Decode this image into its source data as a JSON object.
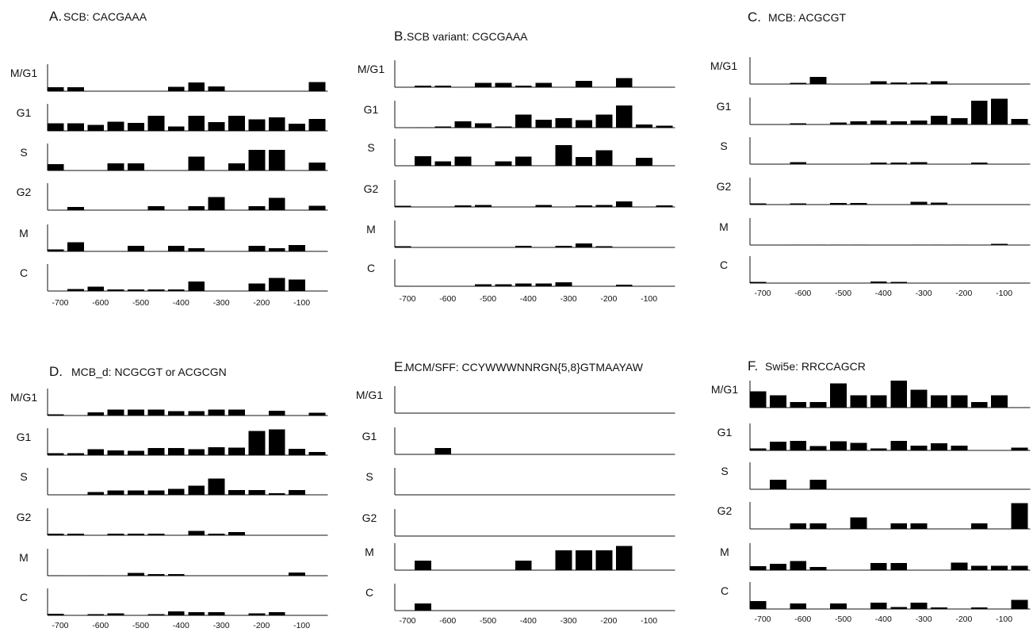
{
  "chart_data": [
    {
      "type": "bar",
      "panel": "A.",
      "title": "SCB: CACGAAA",
      "rows": [
        "M/G1",
        "G1",
        "S",
        "G2",
        "M",
        "C"
      ],
      "x": [
        -700,
        -650,
        -600,
        -550,
        -500,
        -450,
        -400,
        -350,
        -300,
        -250,
        -200,
        -150,
        -100,
        -50
      ],
      "xticks": [
        "-700",
        "-600",
        "-500",
        "-400",
        "-300",
        "-200",
        "-100"
      ],
      "series": [
        {
          "name": "M/G1",
          "values": [
            0.14,
            0.14,
            0,
            0,
            0,
            0,
            0.16,
            0.33,
            0.17,
            0,
            0,
            0,
            0,
            0.34
          ]
        },
        {
          "name": "G1",
          "values": [
            0.28,
            0.28,
            0.22,
            0.34,
            0.3,
            0.56,
            0.16,
            0.56,
            0.32,
            0.56,
            0.42,
            0.5,
            0.26,
            0.44
          ]
        },
        {
          "name": "S",
          "values": [
            0.24,
            0,
            0,
            0.26,
            0.26,
            0,
            0,
            0.52,
            0,
            0.26,
            0.76,
            0.76,
            0,
            0.3
          ]
        },
        {
          "name": "G2",
          "values": [
            0,
            0.12,
            0,
            0,
            0,
            0.14,
            0,
            0.14,
            0.48,
            0,
            0.14,
            0.46,
            0,
            0.16
          ]
        },
        {
          "name": "M",
          "values": [
            0.08,
            0.34,
            0,
            0,
            0.2,
            0,
            0.2,
            0.12,
            0,
            0,
            0.2,
            0.12,
            0.24,
            0
          ]
        },
        {
          "name": "C",
          "values": [
            0,
            0.08,
            0.16,
            0.06,
            0.06,
            0.06,
            0.06,
            0.36,
            0,
            0,
            0.28,
            0.48,
            0.42,
            0
          ]
        }
      ]
    },
    {
      "type": "bar",
      "panel": "B.",
      "title": "SCB variant: CGCGAAA",
      "rows": [
        "M/G1",
        "G1",
        "S",
        "G2",
        "M",
        "C"
      ],
      "x": [
        -700,
        -650,
        -600,
        -550,
        -500,
        -450,
        -400,
        -350,
        -300,
        -250,
        -200,
        -150,
        -100,
        -50
      ],
      "xticks": [
        "-700",
        "-600",
        "-500",
        "-400",
        "-300",
        "-200",
        "-100"
      ],
      "series": [
        {
          "name": "M/G1",
          "values": [
            0,
            0.06,
            0.06,
            0,
            0.16,
            0.16,
            0.06,
            0.16,
            0,
            0.24,
            0,
            0.34,
            0,
            0
          ]
        },
        {
          "name": "G1",
          "values": [
            0,
            0.02,
            0.04,
            0.24,
            0.16,
            0.04,
            0.48,
            0.3,
            0.36,
            0.28,
            0.48,
            0.82,
            0.12,
            0.08
          ]
        },
        {
          "name": "S",
          "values": [
            0,
            0.36,
            0.16,
            0.34,
            0,
            0.16,
            0.34,
            0,
            0.76,
            0.32,
            0.58,
            0,
            0.3,
            0
          ]
        },
        {
          "name": "G2",
          "values": [
            0.04,
            0,
            0,
            0.06,
            0.08,
            0,
            0,
            0.08,
            0,
            0.06,
            0.08,
            0.2,
            0,
            0.06
          ]
        },
        {
          "name": "M",
          "values": [
            0.04,
            0,
            0,
            0,
            0,
            0,
            0.06,
            0,
            0.06,
            0.14,
            0.04,
            0,
            0,
            0
          ]
        },
        {
          "name": "C",
          "values": [
            0.02,
            0,
            0,
            0,
            0.08,
            0.08,
            0.1,
            0.1,
            0.14,
            0,
            0,
            0.06,
            0,
            0
          ]
        }
      ]
    },
    {
      "type": "bar",
      "panel": "C.",
      "title": "MCB: ACGCGT",
      "rows": [
        "M/G1",
        "G1",
        "S",
        "G2",
        "M",
        "C"
      ],
      "x": [
        -700,
        -650,
        -600,
        -550,
        -500,
        -450,
        -400,
        -350,
        -300,
        -250,
        -200,
        -150,
        -100,
        -50
      ],
      "xticks": [
        "-700",
        "-600",
        "-500",
        "-400",
        "-300",
        "-200",
        "-100"
      ],
      "series": [
        {
          "name": "M/G1",
          "values": [
            0,
            0,
            0.04,
            0.26,
            0,
            0,
            0.1,
            0.06,
            0.06,
            0.1,
            0,
            0,
            0,
            0
          ]
        },
        {
          "name": "G1",
          "values": [
            0,
            0,
            0.04,
            0,
            0.08,
            0.12,
            0.14,
            0.12,
            0.14,
            0.32,
            0.24,
            0.88,
            0.96,
            0.2
          ]
        },
        {
          "name": "S",
          "values": [
            0,
            0,
            0.08,
            0,
            0,
            0,
            0.06,
            0.06,
            0.08,
            0,
            0,
            0.06,
            0,
            0
          ]
        },
        {
          "name": "G2",
          "values": [
            0.04,
            0,
            0.04,
            0,
            0.06,
            0.06,
            0,
            0,
            0.1,
            0.08,
            0,
            0,
            0,
            0
          ]
        },
        {
          "name": "M",
          "values": [
            0,
            0,
            0.02,
            0.02,
            0.02,
            0.02,
            0,
            0,
            0.02,
            0.02,
            0.02,
            0,
            0.04,
            0
          ]
        },
        {
          "name": "C",
          "values": [
            0.04,
            0,
            0,
            0,
            0,
            0,
            0.06,
            0.04,
            0,
            0,
            0,
            0,
            0,
            0
          ]
        }
      ]
    },
    {
      "type": "bar",
      "panel": "D.",
      "title": "MCB_d: NCGCGT or ACGCGN",
      "rows": [
        "M/G1",
        "G1",
        "S",
        "G2",
        "M",
        "C"
      ],
      "x": [
        -700,
        -650,
        -600,
        -550,
        -500,
        -450,
        -400,
        -350,
        -300,
        -250,
        -200,
        -150,
        -100,
        -50
      ],
      "xticks": [
        "-700",
        "-600",
        "-500",
        "-400",
        "-300",
        "-200",
        "-100"
      ],
      "series": [
        {
          "name": "M/G1",
          "values": [
            0.04,
            0,
            0.12,
            0.22,
            0.22,
            0.22,
            0.16,
            0.16,
            0.22,
            0.22,
            0,
            0.18,
            0,
            0.1
          ]
        },
        {
          "name": "G1",
          "values": [
            0.08,
            0.08,
            0.22,
            0.18,
            0.16,
            0.26,
            0.26,
            0.22,
            0.3,
            0.28,
            0.9,
            0.96,
            0.24,
            0.12
          ]
        },
        {
          "name": "S",
          "values": [
            0,
            0,
            0.1,
            0.16,
            0.16,
            0.16,
            0.22,
            0.34,
            0.6,
            0.18,
            0.18,
            0.06,
            0.18,
            0
          ]
        },
        {
          "name": "G2",
          "values": [
            0.06,
            0.06,
            0,
            0.06,
            0.06,
            0.06,
            0,
            0.16,
            0.06,
            0.12,
            0,
            0,
            0,
            0
          ]
        },
        {
          "name": "M",
          "values": [
            0.02,
            0,
            0.02,
            0,
            0.1,
            0.06,
            0.06,
            0,
            0,
            0,
            0,
            0,
            0.12,
            0
          ]
        },
        {
          "name": "C",
          "values": [
            0.06,
            0,
            0.04,
            0.08,
            0,
            0.04,
            0.14,
            0.12,
            0.12,
            0,
            0.08,
            0.12,
            0,
            0
          ]
        }
      ]
    },
    {
      "type": "bar",
      "panel": "E.",
      "title": "MCM/SFF: CCYWWWNNRGN{5,8}GTMAAYAW",
      "rows": [
        "M/G1",
        "G1",
        "S",
        "G2",
        "M",
        "C"
      ],
      "x": [
        -700,
        -650,
        -600,
        -550,
        -500,
        -450,
        -400,
        -350,
        -300,
        -250,
        -200,
        -150,
        -100,
        -50
      ],
      "xticks": [
        "-700",
        "-600",
        "-500",
        "-400",
        "-300",
        "-200",
        "-100"
      ],
      "series": [
        {
          "name": "M/G1",
          "values": [
            0,
            0,
            0,
            0,
            0,
            0,
            0,
            0,
            0,
            0,
            0,
            0,
            0,
            0
          ]
        },
        {
          "name": "G1",
          "values": [
            0,
            0,
            0.24,
            0,
            0,
            0,
            0,
            0,
            0,
            0,
            0,
            0,
            0,
            0
          ]
        },
        {
          "name": "S",
          "values": [
            0,
            0,
            0,
            0,
            0,
            0,
            0,
            0,
            0,
            0,
            0,
            0,
            0,
            0
          ]
        },
        {
          "name": "G2",
          "values": [
            0,
            0,
            0,
            0,
            0,
            0,
            0,
            0,
            0,
            0,
            0,
            0,
            0,
            0
          ]
        },
        {
          "name": "M",
          "values": [
            0,
            0.36,
            0,
            0,
            0,
            0,
            0.36,
            0,
            0.74,
            0.74,
            0.74,
            0.9,
            0,
            0
          ]
        },
        {
          "name": "C",
          "values": [
            0,
            0.26,
            0,
            0,
            0,
            0,
            0,
            0,
            0,
            0,
            0,
            0,
            0,
            0
          ]
        }
      ]
    },
    {
      "type": "bar",
      "panel": "F.",
      "title": "Swi5e: RRCCAGCR",
      "rows": [
        "M/G1",
        "G1",
        "S",
        "G2",
        "M",
        "C"
      ],
      "x": [
        -700,
        -650,
        -600,
        -550,
        -500,
        -450,
        -400,
        -350,
        -300,
        -250,
        -200,
        -150,
        -100,
        -50
      ],
      "xticks": [
        "-700",
        "-600",
        "-500",
        "-400",
        "-300",
        "-200",
        "-100"
      ],
      "series": [
        {
          "name": "M/G1",
          "values": [
            0.6,
            0.46,
            0.2,
            0.2,
            0.9,
            0.46,
            0.46,
            1.0,
            0.66,
            0.46,
            0.46,
            0.2,
            0.46,
            0
          ]
        },
        {
          "name": "G1",
          "values": [
            0.08,
            0.32,
            0.36,
            0.16,
            0.34,
            0.28,
            0.08,
            0.36,
            0.18,
            0.26,
            0.18,
            0,
            0,
            0.1
          ]
        },
        {
          "name": "S",
          "values": [
            0,
            0.36,
            0,
            0.36,
            0,
            0,
            0,
            0,
            0,
            0,
            0,
            0,
            0,
            0
          ]
        },
        {
          "name": "G2",
          "values": [
            0,
            0,
            0.2,
            0.2,
            0,
            0.42,
            0,
            0.2,
            0.2,
            0,
            0,
            0.2,
            0,
            0.96
          ]
        },
        {
          "name": "M",
          "values": [
            0.14,
            0.24,
            0.34,
            0.12,
            0,
            0,
            0.26,
            0.26,
            0,
            0,
            0.28,
            0.16,
            0.16,
            0.16
          ]
        },
        {
          "name": "C",
          "values": [
            0.3,
            0,
            0.2,
            0,
            0.2,
            0,
            0.24,
            0.08,
            0.24,
            0.06,
            0,
            0.06,
            0,
            0.34
          ]
        }
      ]
    }
  ]
}
